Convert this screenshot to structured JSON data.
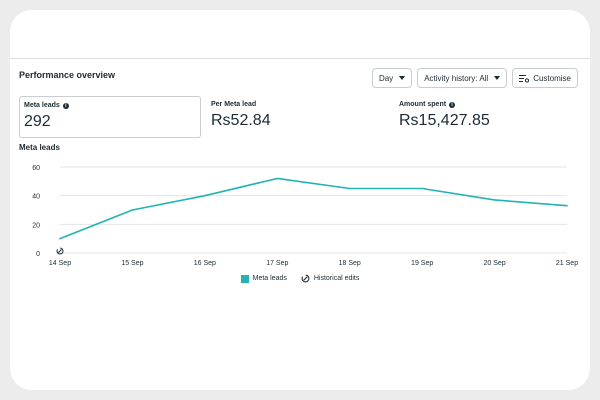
{
  "header": {
    "title": "Performance overview"
  },
  "controls": {
    "day": "Day",
    "activity": "Activity history: All",
    "customise": "Customise"
  },
  "metrics": {
    "meta_leads": {
      "label": "Meta leads",
      "value": "292"
    },
    "per_lead": {
      "label": "Per Meta lead",
      "value": "Rs52.84"
    },
    "amount": {
      "label": "Amount spent",
      "value": "Rs15,427.85"
    }
  },
  "chart_title": "Meta leads",
  "colors": {
    "series": "#23b3b3",
    "grid": "#e3e5e8"
  },
  "legend": {
    "series": "Meta leads",
    "edits": "Historical edits"
  },
  "chart_data": {
    "type": "line",
    "title": "Meta leads",
    "categories": [
      "14 Sep",
      "15 Sep",
      "16 Sep",
      "17 Sep",
      "18 Sep",
      "19 Sep",
      "20 Sep",
      "21 Sep"
    ],
    "series": [
      {
        "name": "Meta leads",
        "values": [
          10,
          30,
          40,
          52,
          45,
          45,
          37,
          33
        ]
      }
    ],
    "yticks": [
      0,
      20,
      40,
      60
    ],
    "ylim": [
      0,
      60
    ],
    "grid": true,
    "legend": "bottom"
  }
}
